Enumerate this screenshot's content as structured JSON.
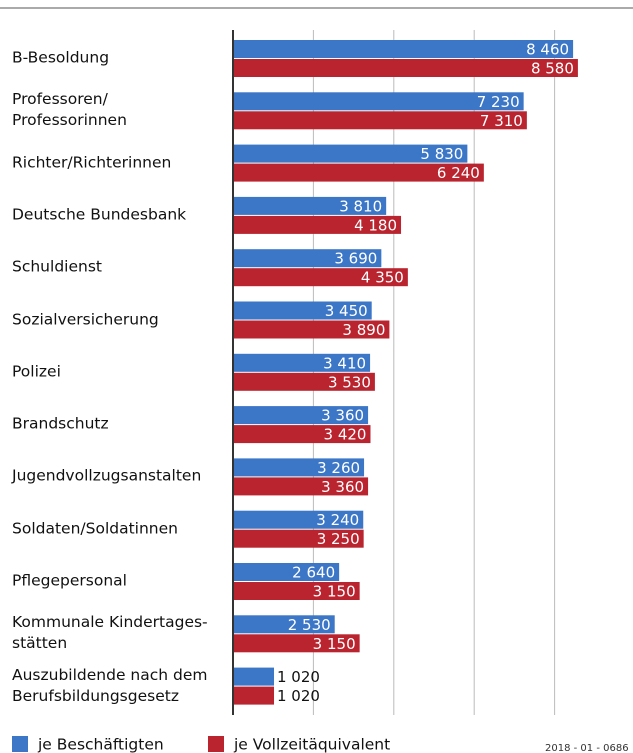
{
  "chart_data": {
    "type": "barh",
    "categories": [
      "B-Besoldung",
      "Professoren/\nProfessorinnen",
      "Richter/Richterinnen",
      "Deutsche Bundesbank",
      "Schuldienst",
      "Sozialversicherung",
      "Polizei",
      "Brandschutz",
      "Jugendvollzugsanstalten",
      "Soldaten/Soldatinnen",
      "Pflegepersonal",
      "Kommunale Kindertages-\nstätten",
      "Auszubildende nach dem\nBerufsbildungsgesetz"
    ],
    "series": [
      {
        "name": "je Beschäftigten",
        "color": "#3c76c6",
        "values": [
          8460,
          7230,
          5830,
          3810,
          3690,
          3450,
          3410,
          3360,
          3260,
          3240,
          2640,
          2530,
          1020
        ],
        "value_labels": [
          "8 460",
          "7 230",
          "5 830",
          "3 810",
          "3 690",
          "3 450",
          "3 410",
          "3 360",
          "3 260",
          "3 240",
          "2 640",
          "2 530",
          "1 020"
        ]
      },
      {
        "name": "je Vollzeitäquivalent",
        "color": "#b9242f",
        "values": [
          8580,
          7310,
          6240,
          4180,
          4350,
          3890,
          3530,
          3420,
          3360,
          3250,
          3150,
          3150,
          1020
        ],
        "value_labels": [
          "8 580",
          "7 310",
          "6 240",
          "4 180",
          "4 350",
          "3 890",
          "3 530",
          "3 420",
          "3 360",
          "3 250",
          "3 150",
          "3 150",
          "1 020"
        ]
      }
    ],
    "xlim": [
      0,
      10000
    ],
    "xticks": [
      0,
      2000,
      4000,
      6000,
      8000
    ],
    "grid": true,
    "source": "2018 - 01 - 0686"
  }
}
